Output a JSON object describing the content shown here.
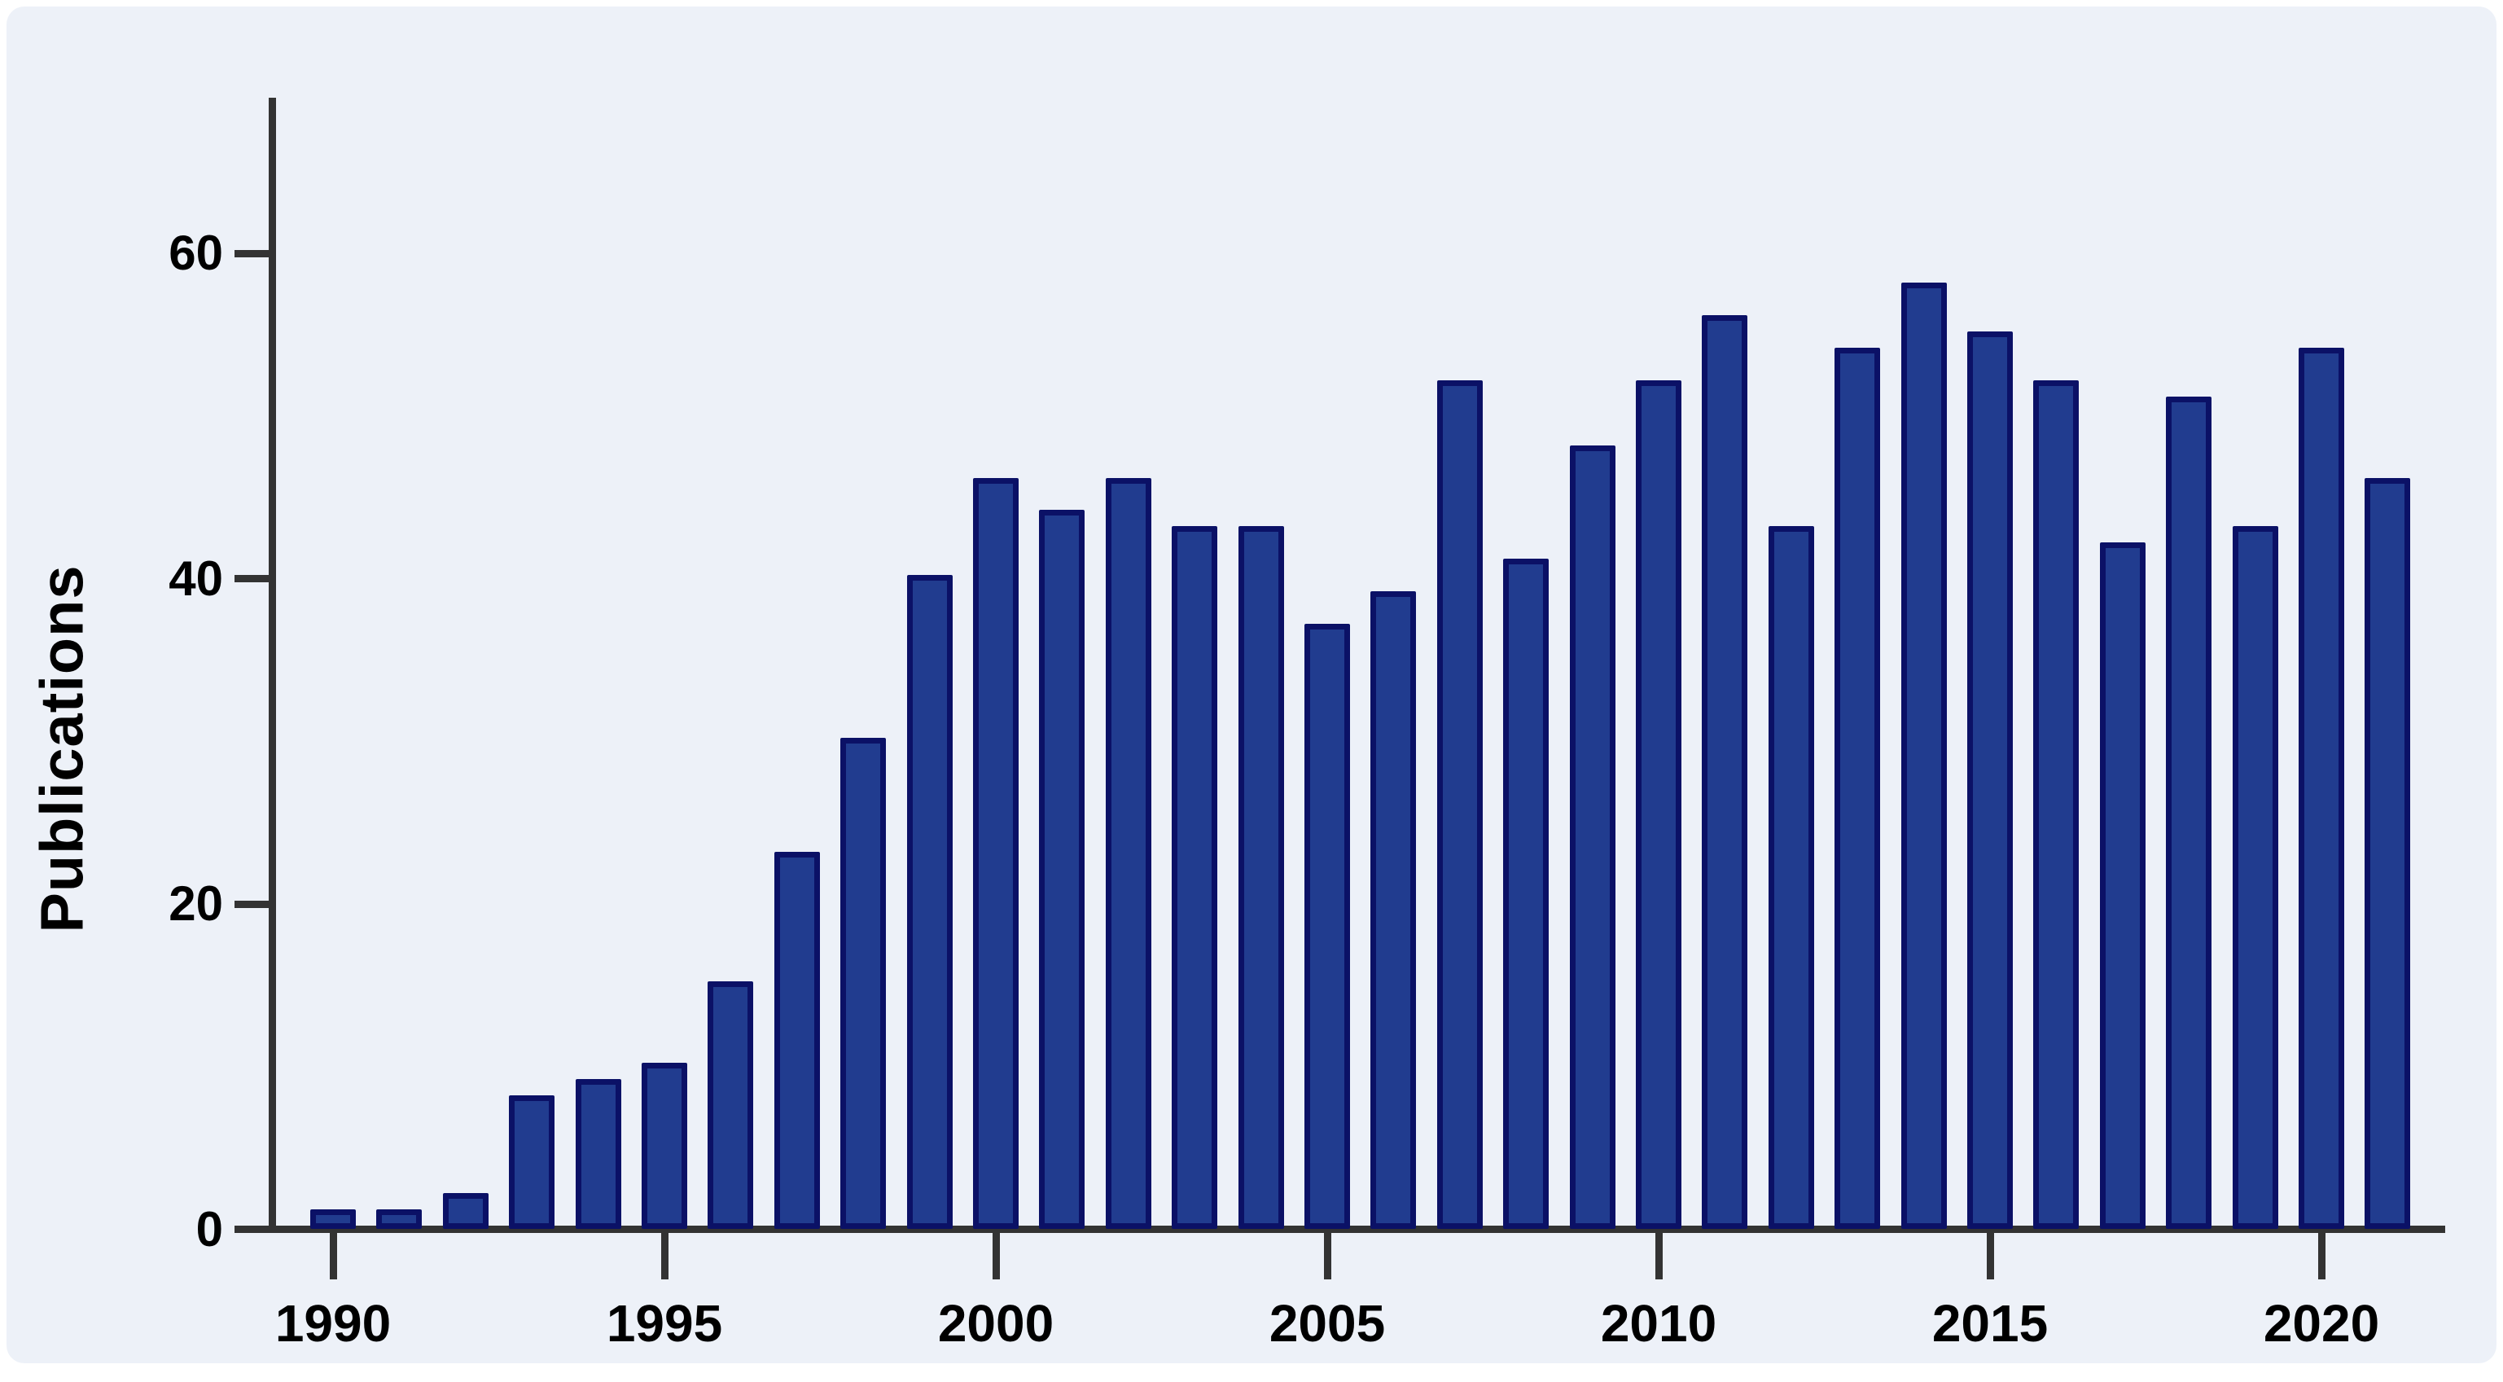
{
  "figure": {
    "panel_background": "#EDF1F8",
    "outer_background": "#FFFFFF",
    "axis_color": "#333333",
    "text_color": "#000000"
  },
  "chart_data": {
    "type": "bar",
    "title": "",
    "xlabel": "",
    "ylabel": "Publications",
    "categories": [
      1990,
      1991,
      1992,
      1993,
      1994,
      1995,
      1996,
      1997,
      1998,
      1999,
      2000,
      2001,
      2002,
      2003,
      2004,
      2005,
      2006,
      2007,
      2008,
      2009,
      2010,
      2011,
      2012,
      2013,
      2014,
      2015,
      2016,
      2017,
      2018,
      2019,
      2020,
      2021
    ],
    "values": [
      1,
      1,
      2,
      8,
      9,
      10,
      15,
      23,
      30,
      40,
      46,
      44,
      46,
      43,
      43,
      37,
      39,
      52,
      41,
      48,
      52,
      56,
      43,
      54,
      58,
      55,
      52,
      42,
      51,
      43,
      54,
      46
    ],
    "x_tick_labels": [
      "1990",
      "1995",
      "2000",
      "2005",
      "2010",
      "2015",
      "2020"
    ],
    "y_tick_labels": [
      "0",
      "20",
      "40",
      "60"
    ],
    "ylim": [
      0,
      69
    ],
    "grid": "off",
    "legend": "none",
    "bar_fill_color": "#213C8F",
    "bar_border_color": "#0B1166"
  }
}
